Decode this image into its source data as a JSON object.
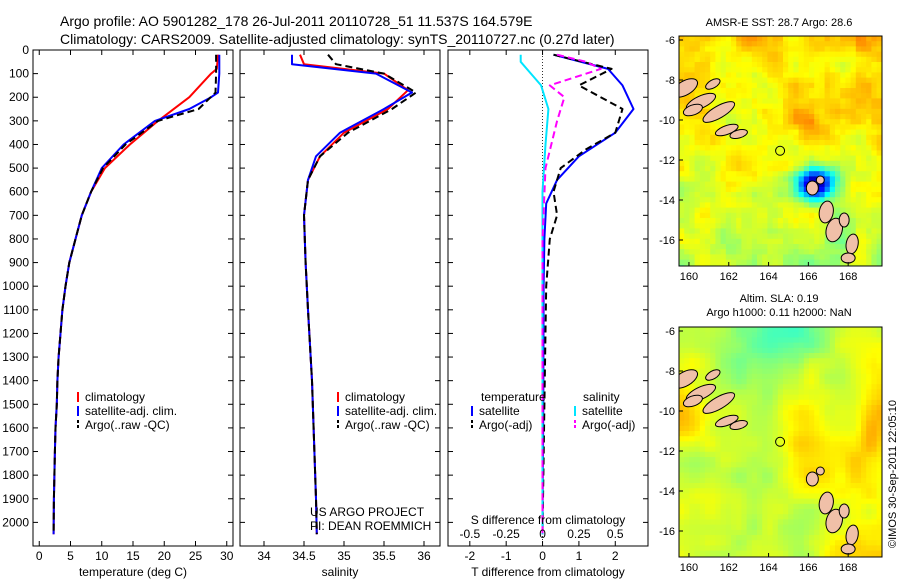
{
  "title": {
    "line1": "Argo profile: AO 5901282_178 26-Jul-2011 20110728_51 11.537S 164.579E",
    "line2": "Climatology: CARS2009. Satellite-adjusted climatology: synTS_20110727.nc (0.27d later)"
  },
  "credit": {
    "project": "US ARGO PROJECT",
    "pi": "PI: DEAN ROEMMICH",
    "stamp": "©IMOS 30-Sep-2011 22:05:10"
  },
  "colors": {
    "climatology": "#ff0000",
    "satellite": "#0000ff",
    "argo": "#000000",
    "sal_satellite": "#00e5ff",
    "sal_argo": "#ff00ff"
  },
  "chart_data": [
    {
      "id": "temperature",
      "type": "line",
      "xlabel": "temperature (deg C)",
      "ylabel": "",
      "xlim": [
        -1,
        31
      ],
      "ylim": [
        2100,
        0
      ],
      "xticks": [
        0,
        5,
        10,
        15,
        20,
        25,
        30
      ],
      "yticks": [
        0,
        100,
        200,
        300,
        400,
        500,
        600,
        700,
        800,
        900,
        1000,
        1100,
        1200,
        1300,
        1400,
        1500,
        1600,
        1700,
        1800,
        1900,
        2000
      ],
      "legend": [
        "climatology",
        "satellite-adj. clim.",
        "Argo(..raw -QC)"
      ],
      "legend_position": "lower-left",
      "series": [
        {
          "name": "climatology",
          "style": "solid",
          "color": "#ff0000",
          "x": [
            28.6,
            28.4,
            27.5,
            24,
            19,
            14.5,
            10.5,
            8.3,
            6.8,
            5.8,
            4.8,
            4.2,
            3.7,
            3.4,
            3.1,
            2.9,
            2.8,
            2.6,
            2.5,
            2.35,
            2.3
          ],
          "y": [
            20,
            80,
            100,
            200,
            300,
            400,
            500,
            600,
            700,
            800,
            900,
            1000,
            1100,
            1200,
            1300,
            1400,
            1500,
            1600,
            1700,
            1900,
            2050
          ]
        },
        {
          "name": "satellite-adj. clim.",
          "style": "solid",
          "color": "#0000ff",
          "x": [
            28.8,
            28.8,
            28.6,
            27.5,
            24,
            18.5,
            13.5,
            10,
            8.3,
            6.8,
            5.8,
            4.8,
            4.2,
            3.7,
            3.4,
            3.1,
            2.9,
            2.8,
            2.6,
            2.5,
            2.35,
            2.3
          ],
          "y": [
            20,
            100,
            180,
            200,
            250,
            300,
            400,
            500,
            600,
            700,
            800,
            900,
            1000,
            1100,
            1200,
            1300,
            1400,
            1500,
            1600,
            1700,
            1900,
            2050
          ]
        },
        {
          "name": "Argo(..raw -QC)",
          "style": "dash",
          "color": "#000000",
          "x": [
            28.3,
            28.3,
            28.2,
            25.5,
            19,
            13.8,
            10.2,
            8.3,
            6.8,
            5.8,
            4.8,
            4.2,
            3.7,
            3.4,
            3.1,
            2.9,
            2.8,
            2.6,
            2.5,
            2.35,
            2.3
          ],
          "y": [
            20,
            100,
            180,
            250,
            300,
            400,
            500,
            600,
            700,
            800,
            900,
            1000,
            1100,
            1200,
            1300,
            1400,
            1500,
            1600,
            1700,
            1900,
            2050
          ]
        }
      ]
    },
    {
      "id": "salinity",
      "type": "line",
      "xlabel": "salinity",
      "xlim": [
        33.7,
        36.2
      ],
      "ylim": [
        2100,
        0
      ],
      "xticks": [
        34,
        34.5,
        35,
        35.5,
        36
      ],
      "xtick_labels": [
        "34",
        "34.5",
        "35",
        "35.5",
        "36"
      ],
      "legend": [
        "climatology",
        "satellite-adj. clim.",
        "Argo(..raw -QC)"
      ],
      "legend_position": "lower-left",
      "series": [
        {
          "name": "climatology",
          "style": "solid",
          "color": "#ff0000",
          "x": [
            34.45,
            34.5,
            35.5,
            35.8,
            35.55,
            35.0,
            34.7,
            34.55,
            34.5,
            34.52,
            34.55,
            34.6,
            34.62,
            34.65,
            34.66
          ],
          "y": [
            20,
            60,
            100,
            170,
            250,
            350,
            450,
            550,
            700,
            900,
            1100,
            1400,
            1600,
            1900,
            2050
          ]
        },
        {
          "name": "satellite-adj. clim.",
          "style": "solid",
          "color": "#0000ff",
          "x": [
            34.35,
            34.35,
            35.4,
            35.85,
            35.5,
            34.95,
            34.65,
            34.55,
            34.5,
            34.52,
            34.55,
            34.6,
            34.62,
            34.65,
            34.66
          ],
          "y": [
            20,
            60,
            100,
            180,
            250,
            350,
            450,
            550,
            700,
            900,
            1100,
            1400,
            1600,
            1900,
            2050
          ]
        },
        {
          "name": "Argo(..raw -QC)",
          "style": "dash",
          "color": "#000000",
          "x": [
            34.8,
            34.9,
            35.5,
            35.9,
            35.6,
            35.05,
            34.7,
            34.55,
            34.5,
            34.52,
            34.55,
            34.6,
            34.62,
            34.65,
            34.66
          ],
          "y": [
            20,
            60,
            100,
            180,
            250,
            350,
            450,
            550,
            700,
            900,
            1100,
            1400,
            1600,
            1900,
            2050
          ]
        }
      ]
    },
    {
      "id": "difference",
      "type": "line",
      "xlabel": "T difference from climatology",
      "xlabel_top": "S difference from climatology",
      "xlim": [
        -2.6,
        2.9
      ],
      "ylim": [
        2100,
        0
      ],
      "xticks": [
        -2,
        -1,
        0,
        1,
        2
      ],
      "sticks": [
        -0.5,
        -0.25,
        0,
        0.25,
        0.5
      ],
      "stick_labels": [
        "-0.5",
        "-0.25",
        "0",
        "0.25",
        "0.5"
      ],
      "legend_left_title": "temperature",
      "legend_right_title": "salinity",
      "legend_position": "lower-center",
      "series": [
        {
          "name": "satellite",
          "group": "temperature",
          "style": "solid",
          "color": "#0000ff",
          "x": [
            0.3,
            1.8,
            2.2,
            2.5,
            2.0,
            1.0,
            0.4,
            0.1,
            0.05,
            0.03,
            0.02,
            0.0
          ],
          "y": [
            20,
            80,
            150,
            250,
            350,
            450,
            550,
            650,
            800,
            1000,
            1500,
            2050
          ]
        },
        {
          "name": "Argo(-adj)",
          "group": "temperature",
          "style": "dash",
          "color": "#000000",
          "x": [
            0.3,
            1.9,
            1.0,
            2.2,
            2.0,
            1.2,
            0.5,
            0.3,
            0.4,
            0.2,
            0.1,
            0.05,
            0.0
          ],
          "y": [
            20,
            80,
            150,
            250,
            350,
            420,
            500,
            600,
            700,
            800,
            1000,
            1500,
            2050
          ]
        },
        {
          "name": "satellite",
          "group": "salinity",
          "style": "solid",
          "color": "#00e5ff",
          "x": [
            -0.15,
            -0.15,
            -0.08,
            -0.01,
            0.04,
            0.02,
            0.0,
            0.0,
            0.0
          ],
          "y": [
            20,
            50,
            100,
            150,
            250,
            400,
            600,
            1000,
            2050
          ]
        },
        {
          "name": "Argo(-adj)",
          "group": "salinity",
          "style": "dash",
          "color": "#ff00ff",
          "x": [
            0.1,
            0.3,
            0.4,
            0.05,
            0.15,
            0.1,
            0.02,
            0.0,
            0.0
          ],
          "y": [
            20,
            50,
            80,
            150,
            200,
            300,
            500,
            800,
            2050
          ]
        }
      ]
    },
    {
      "id": "sst_map",
      "type": "heatmap",
      "title": "AMSR-E SST: 28.7 Argo: 28.6",
      "xlim": [
        159.5,
        169.7
      ],
      "ylim": [
        -17.3,
        -5.8
      ],
      "xticks": [
        160,
        162,
        164,
        166,
        168
      ],
      "yticks": [
        -6,
        -8,
        -10,
        -12,
        -14,
        -16
      ],
      "marker": {
        "lon": 164.579,
        "lat": -11.537
      }
    },
    {
      "id": "sla_map",
      "type": "heatmap",
      "title": "Altim. SLA: 0.19",
      "subtitle": "Argo h1000: 0.11 h2000: NaN",
      "xlim": [
        159.5,
        169.7
      ],
      "ylim": [
        -17.3,
        -5.8
      ],
      "xticks": [
        160,
        162,
        164,
        166,
        168
      ],
      "yticks": [
        -6,
        -8,
        -10,
        -12,
        -14,
        -16
      ],
      "marker": {
        "lon": 164.579,
        "lat": -11.537
      }
    }
  ]
}
